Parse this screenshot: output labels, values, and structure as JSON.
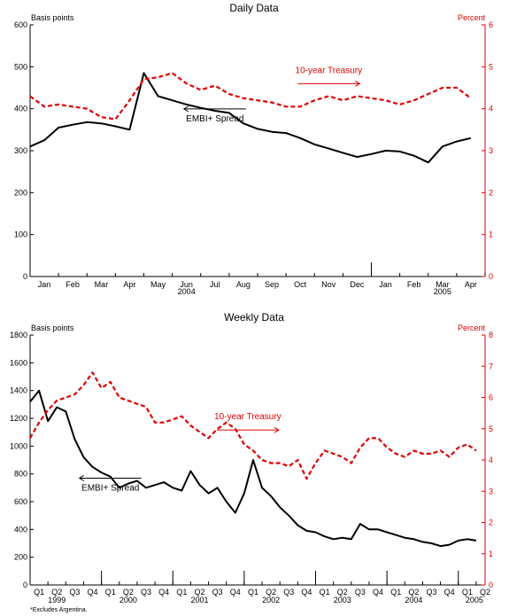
{
  "footnote": "*Excludes Argentina.",
  "colors": {
    "spread": "#000000",
    "treasury": "#e00000"
  },
  "chart_data": [
    {
      "type": "line",
      "title": "Daily Data",
      "ylabel_left": "Basis points",
      "ylabel_right": "Percent",
      "ylim_left": [
        0,
        600
      ],
      "ylim_right": [
        0,
        6
      ],
      "yticks_left": [
        "0",
        "100",
        "200",
        "300",
        "400",
        "500",
        "600"
      ],
      "yticks_right": [
        "0",
        "1",
        "2",
        "3",
        "4",
        "5",
        "6"
      ],
      "month_labels": [
        "Jan",
        "Feb",
        "Mar",
        "Apr",
        "May",
        "Jun",
        "Jul",
        "Aug",
        "Sep",
        "Oct",
        "Nov",
        "Dec",
        "Jan",
        "Feb",
        "Mar",
        "Apr"
      ],
      "year_labels": [
        {
          "label": "2004",
          "month_index": 5.5
        },
        {
          "label": "2005",
          "month_index": 14.5
        }
      ],
      "x_months": [
        0,
        0.5,
        1,
        1.5,
        2,
        2.5,
        3,
        3.5,
        4,
        4.5,
        5,
        5.5,
        6,
        6.5,
        7,
        7.5,
        8,
        8.5,
        9,
        9.5,
        10,
        10.5,
        11,
        11.5,
        12,
        12.5,
        13,
        13.5,
        14,
        14.5,
        15,
        15.5
      ],
      "series": [
        {
          "name": "EMBI+ Spread",
          "axis": "left",
          "style": "solid",
          "values": [
            310,
            325,
            355,
            362,
            368,
            365,
            358,
            350,
            485,
            430,
            420,
            410,
            402,
            395,
            390,
            365,
            352,
            345,
            342,
            330,
            315,
            305,
            295,
            285,
            292,
            300,
            298,
            288,
            272,
            310,
            322,
            330
          ]
        },
        {
          "name": "10-year Treasury",
          "axis": "right",
          "style": "dashed",
          "values": [
            4.3,
            4.05,
            4.1,
            4.05,
            4.0,
            3.8,
            3.75,
            4.2,
            4.7,
            4.75,
            4.85,
            4.6,
            4.45,
            4.55,
            4.35,
            4.25,
            4.2,
            4.15,
            4.05,
            4.05,
            4.2,
            4.3,
            4.2,
            4.3,
            4.25,
            4.2,
            4.1,
            4.2,
            4.35,
            4.5,
            4.5,
            4.25
          ]
        }
      ],
      "annotations": [
        {
          "text": "10-year Treasury",
          "arrow": "right",
          "x_month": 10.5,
          "y_right": 4.85
        },
        {
          "text": "EMBI+ Spread",
          "arrow": "left",
          "x_month": 6.5,
          "y_left": 370
        }
      ]
    },
    {
      "type": "line",
      "title": "Weekly Data",
      "ylabel_left": "Basis points",
      "ylabel_right": "Percent",
      "ylim_left": [
        0,
        1800
      ],
      "ylim_right": [
        0,
        8
      ],
      "yticks_left": [
        "0",
        "200",
        "400",
        "600",
        "800",
        "1000",
        "1200",
        "1400",
        "1600",
        "1800"
      ],
      "yticks_right": [
        "0",
        "1",
        "2",
        "3",
        "4",
        "5",
        "6",
        "7",
        "8"
      ],
      "quarter_labels": [
        "Q1",
        "Q2",
        "Q3",
        "Q4",
        "Q1",
        "Q2",
        "Q3",
        "Q4",
        "Q1",
        "Q2",
        "Q3",
        "Q4",
        "Q1",
        "Q2",
        "Q3",
        "Q4",
        "Q1",
        "Q2",
        "Q3",
        "Q4",
        "Q1",
        "Q2",
        "Q3",
        "Q4",
        "Q1",
        "Q2"
      ],
      "year_labels": [
        {
          "label": "1999",
          "q": 1.5
        },
        {
          "label": "2000",
          "q": 5.5
        },
        {
          "label": "2001",
          "q": 9.5
        },
        {
          "label": "2002",
          "q": 13.5
        },
        {
          "label": "2003",
          "q": 17.5
        },
        {
          "label": "2004",
          "q": 21.5
        },
        {
          "label": "2005",
          "q": 24.9
        }
      ],
      "x_quarters": [
        0,
        0.5,
        1,
        1.5,
        2,
        2.5,
        3,
        3.5,
        4,
        4.5,
        5,
        5.5,
        6,
        6.5,
        7,
        7.5,
        8,
        8.5,
        9,
        9.5,
        10,
        10.5,
        11,
        11.5,
        12,
        12.5,
        13,
        13.5,
        14,
        14.5,
        15,
        15.5,
        16,
        16.5,
        17,
        17.5,
        18,
        18.5,
        19,
        19.5,
        20,
        20.5,
        21,
        21.5,
        22,
        22.5,
        23,
        23.5,
        24,
        24.5,
        25
      ],
      "series": [
        {
          "name": "EMBI+ Spread",
          "axis": "left",
          "style": "solid",
          "values": [
            1320,
            1400,
            1180,
            1280,
            1250,
            1050,
            920,
            850,
            810,
            780,
            700,
            730,
            750,
            700,
            720,
            740,
            700,
            680,
            820,
            720,
            660,
            700,
            600,
            520,
            660,
            900,
            700,
            640,
            560,
            500,
            430,
            390,
            380,
            350,
            330,
            340,
            330,
            440,
            400,
            400,
            380,
            360,
            340,
            330,
            310,
            300,
            280,
            290,
            320,
            330,
            320
          ]
        },
        {
          "name": "10-year Treasury",
          "axis": "right",
          "style": "dashed",
          "values": [
            4.7,
            5.2,
            5.6,
            5.9,
            6.0,
            6.1,
            6.4,
            6.8,
            6.3,
            6.5,
            6.0,
            5.9,
            5.8,
            5.7,
            5.2,
            5.2,
            5.3,
            5.4,
            5.1,
            4.9,
            4.7,
            5.0,
            5.2,
            5.0,
            4.5,
            4.3,
            4.0,
            3.9,
            3.9,
            3.8,
            4.0,
            3.4,
            3.9,
            4.3,
            4.2,
            4.1,
            3.9,
            4.4,
            4.7,
            4.7,
            4.4,
            4.2,
            4.1,
            4.3,
            4.2,
            4.2,
            4.3,
            4.1,
            4.4,
            4.5,
            4.3
          ]
        }
      ],
      "annotations": [
        {
          "text": "10-year Treasury",
          "arrow": "right",
          "x_q": 12.2,
          "y_right": 5.3
        },
        {
          "text": "EMBI+ Spread",
          "arrow": "left",
          "x_q": 4.5,
          "y_left": 680
        }
      ]
    }
  ]
}
